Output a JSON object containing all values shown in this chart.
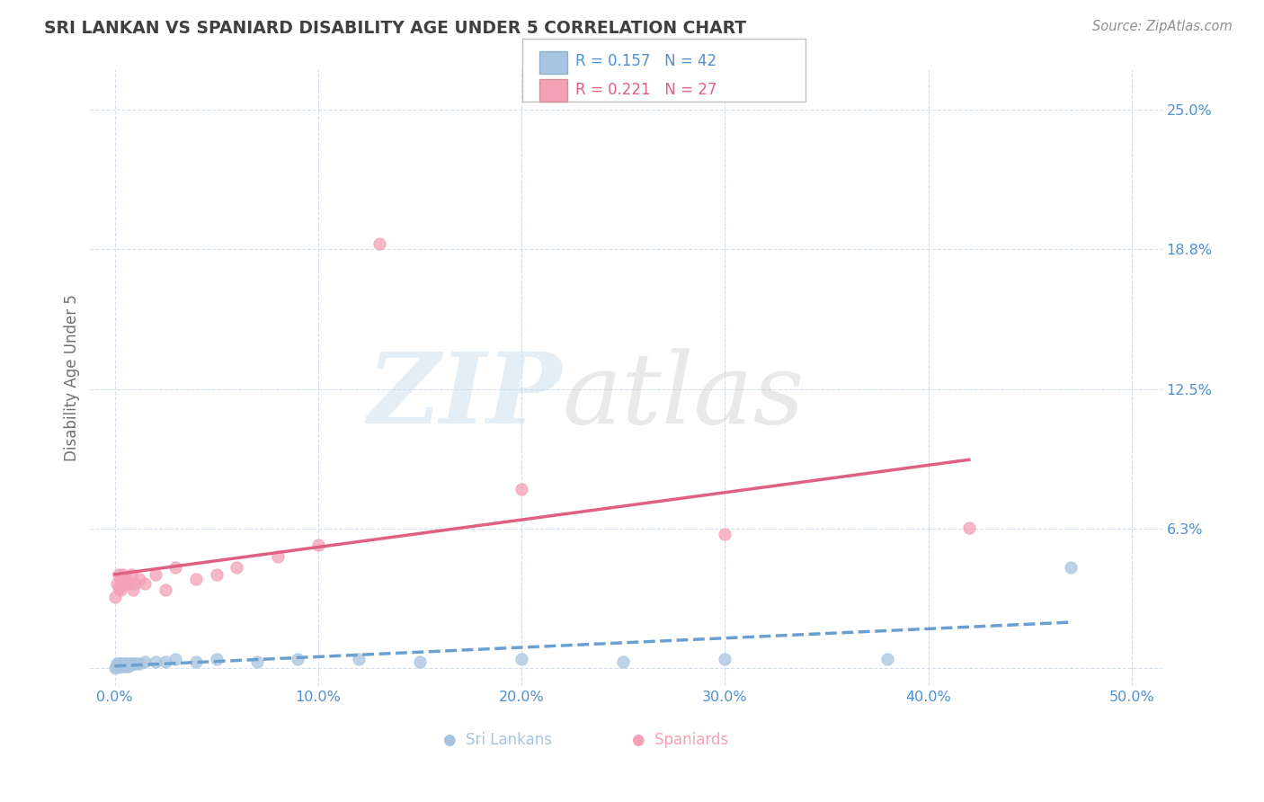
{
  "title": "SRI LANKAN VS SPANIARD DISABILITY AGE UNDER 5 CORRELATION CHART",
  "source": "Source: ZipAtlas.com",
  "ylabel_label": "Disability Age Under 5",
  "x_ticks": [
    0.0,
    0.1,
    0.2,
    0.3,
    0.4,
    0.5
  ],
  "x_tick_labels": [
    "0.0%",
    "10.0%",
    "20.0%",
    "30.0%",
    "40.0%",
    "50.0%"
  ],
  "y_ticks": [
    0.0,
    0.0625,
    0.125,
    0.1875,
    0.25
  ],
  "y_tick_labels": [
    "",
    "6.3%",
    "12.5%",
    "18.8%",
    "25.0%"
  ],
  "xlim": [
    -0.012,
    0.515
  ],
  "ylim": [
    -0.008,
    0.268
  ],
  "sri_lankans_x": [
    0.0,
    0.001,
    0.001,
    0.001,
    0.002,
    0.002,
    0.002,
    0.002,
    0.002,
    0.003,
    0.003,
    0.003,
    0.003,
    0.004,
    0.004,
    0.005,
    0.005,
    0.005,
    0.006,
    0.006,
    0.007,
    0.007,
    0.008,
    0.009,
    0.01,
    0.011,
    0.012,
    0.015,
    0.02,
    0.025,
    0.03,
    0.04,
    0.05,
    0.07,
    0.09,
    0.12,
    0.15,
    0.2,
    0.25,
    0.3,
    0.38,
    0.47
  ],
  "sri_lankans_y": [
    0.0,
    0.001,
    0.002,
    0.001,
    0.001,
    0.002,
    0.001,
    0.002,
    0.001,
    0.002,
    0.001,
    0.002,
    0.001,
    0.002,
    0.001,
    0.002,
    0.001,
    0.002,
    0.001,
    0.002,
    0.002,
    0.001,
    0.002,
    0.002,
    0.002,
    0.002,
    0.002,
    0.003,
    0.003,
    0.003,
    0.004,
    0.003,
    0.004,
    0.003,
    0.004,
    0.004,
    0.003,
    0.004,
    0.003,
    0.004,
    0.004,
    0.045
  ],
  "spaniards_x": [
    0.0,
    0.001,
    0.002,
    0.002,
    0.003,
    0.003,
    0.004,
    0.005,
    0.006,
    0.007,
    0.008,
    0.009,
    0.01,
    0.012,
    0.015,
    0.02,
    0.025,
    0.03,
    0.04,
    0.05,
    0.06,
    0.08,
    0.1,
    0.13,
    0.2,
    0.3,
    0.42
  ],
  "spaniards_y": [
    0.032,
    0.038,
    0.042,
    0.036,
    0.04,
    0.035,
    0.042,
    0.038,
    0.04,
    0.038,
    0.042,
    0.035,
    0.038,
    0.04,
    0.038,
    0.042,
    0.035,
    0.045,
    0.04,
    0.042,
    0.045,
    0.05,
    0.055,
    0.19,
    0.08,
    0.06,
    0.063
  ],
  "sri_lankans_R": 0.157,
  "sri_lankans_N": 42,
  "spaniards_R": 0.221,
  "spaniards_N": 27,
  "sri_lankan_color": "#a8c4e0",
  "spaniard_color": "#f4a0b5",
  "sri_lankan_line_color": "#6a9fd0",
  "spaniard_line_color": "#e06080",
  "bg_color": "#ffffff",
  "grid_color": "#c8d8e8",
  "title_color": "#404040",
  "axis_label_color": "#707070",
  "tick_color": "#5090d0",
  "source_color": "#909090",
  "legend_color_sri": "#5090d0",
  "legend_color_spa": "#e06080"
}
